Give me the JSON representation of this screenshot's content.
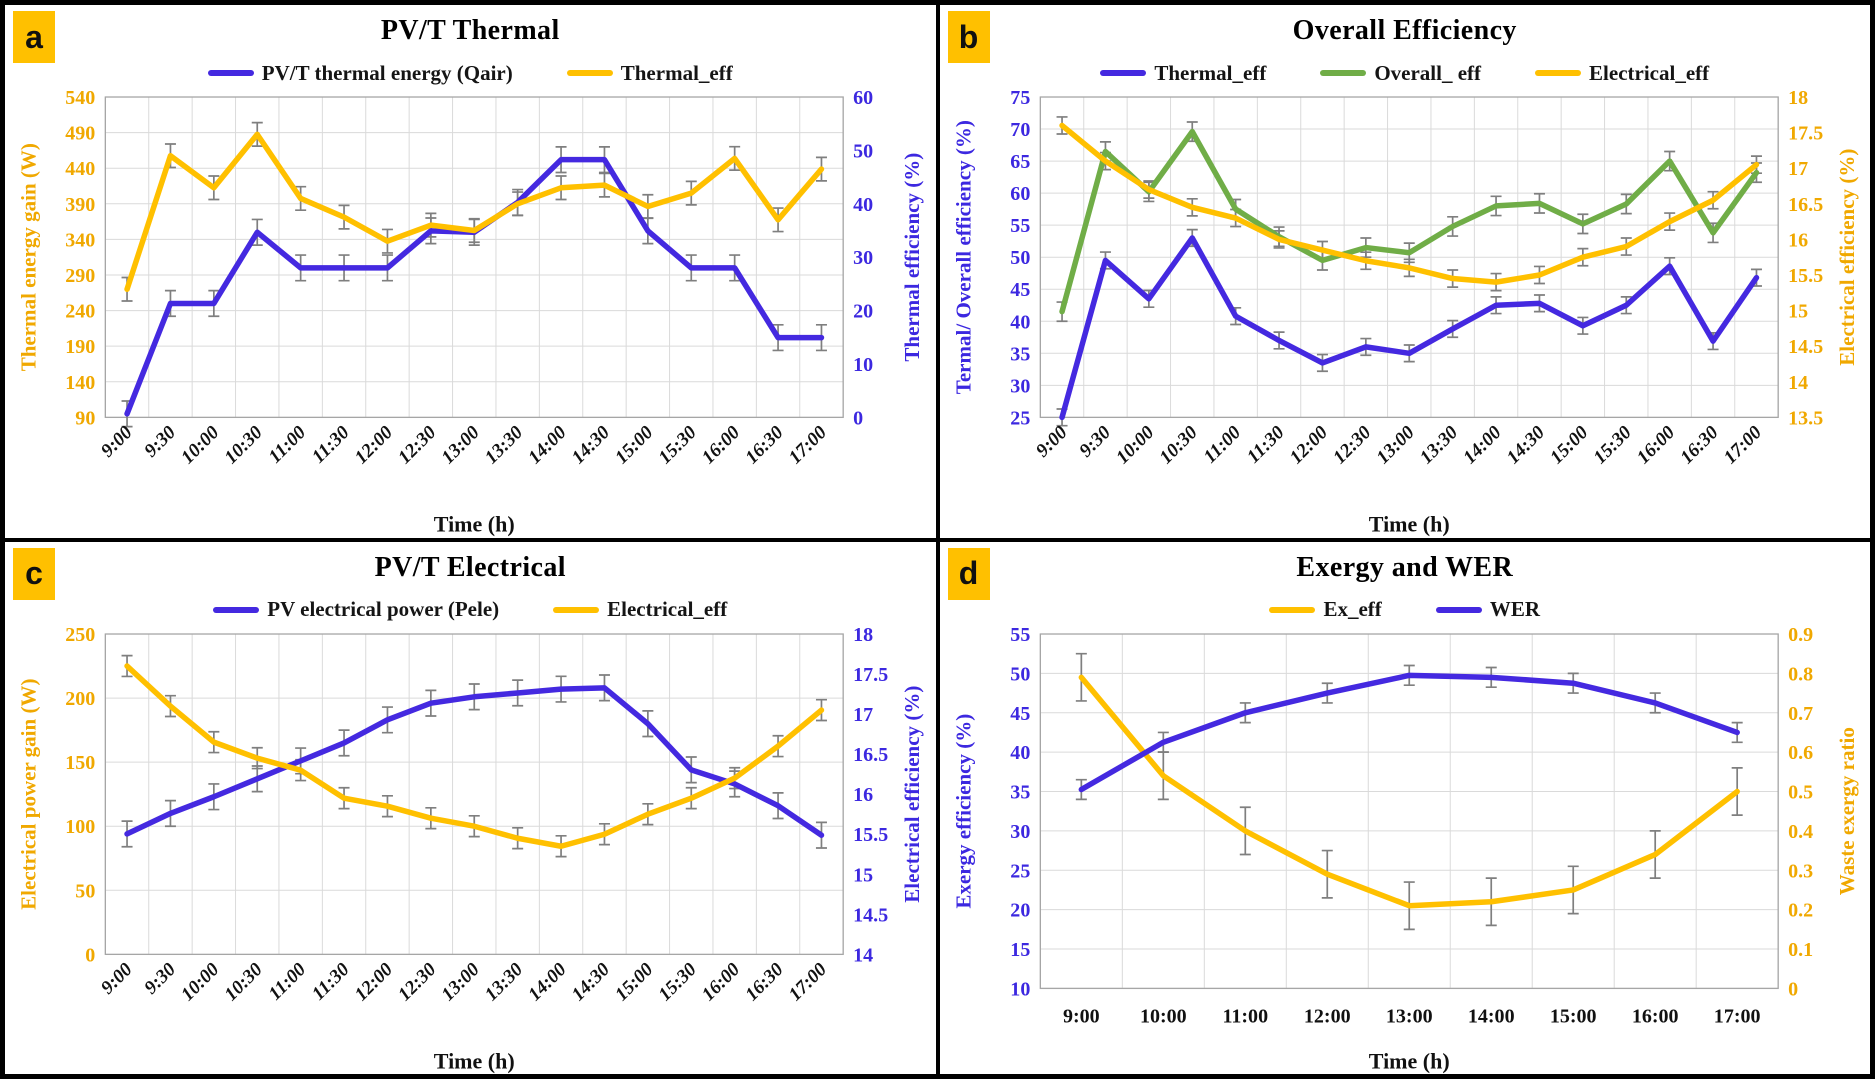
{
  "figure": {
    "background": "#FFFFFF",
    "border_color": "#000000",
    "badge_color": "#FFC000"
  },
  "chart_data": [
    {
      "panel_letter": "a",
      "type": "line",
      "title": "PV/T Thermal",
      "x_label": "Time (h)",
      "x_rotated": true,
      "grid": true,
      "legend_position": "top",
      "error_bar_color": "#7F7F7F",
      "categories": [
        "9:00",
        "9:30",
        "10:00",
        "10:30",
        "11:00",
        "11:30",
        "12:00",
        "12:30",
        "13:00",
        "13:30",
        "14:00",
        "14:30",
        "15:00",
        "15:30",
        "16:00",
        "16:30",
        "17:00"
      ],
      "left_axis": {
        "label": "Thermal energy gain (W)",
        "color": "#F0A800",
        "min": 90,
        "max": 540,
        "step": 50
      },
      "right_axis": {
        "label": "Thermal efficiency (%)",
        "color": "#3C28E0",
        "min": 0,
        "max": 60,
        "step": 10
      },
      "series": [
        {
          "name": "PV/T thermal energy (Qair)",
          "color": "#4429E0",
          "axis": "left",
          "err": 18,
          "values": [
            95,
            250,
            250,
            350,
            300,
            300,
            300,
            352,
            350,
            392,
            452,
            452,
            352,
            300,
            300,
            202,
            202
          ]
        },
        {
          "name": "Thermal_eff",
          "color": "#FFC000",
          "axis": "right",
          "err": 2.2,
          "values": [
            24,
            49,
            43,
            53,
            41,
            37.5,
            33,
            36,
            35,
            40,
            43,
            43.5,
            39.5,
            42,
            48.5,
            37,
            46.5
          ]
        }
      ]
    },
    {
      "panel_letter": "b",
      "type": "line",
      "title": "Overall Efficiency",
      "x_label": "Time (h)",
      "x_rotated": true,
      "grid": true,
      "legend_position": "top",
      "error_bar_color": "#7F7F7F",
      "categories": [
        "9:00",
        "9:30",
        "10:00",
        "10:30",
        "11:00",
        "11:30",
        "12:00",
        "12:30",
        "13:00",
        "13:30",
        "14:00",
        "14:30",
        "15:00",
        "15:30",
        "16:00",
        "16:30",
        "17:00"
      ],
      "left_axis": {
        "label": "Termal/ Overall efficiency (%)",
        "color": "#3C28E0",
        "min": 25,
        "max": 75,
        "step": 5
      },
      "right_axis": {
        "label": "Electrical efficiency (%)",
        "color": "#F0A800",
        "min": 13.5,
        "max": 18,
        "step": 0.5
      },
      "series": [
        {
          "name": "Thermal_eff",
          "color": "#4429E0",
          "axis": "left",
          "err": 1.3,
          "values": [
            25,
            49.5,
            43.5,
            53,
            40.8,
            37,
            33.5,
            36,
            35,
            38.8,
            42.5,
            42.8,
            39.3,
            42.5,
            48.6,
            36.9,
            46.8
          ]
        },
        {
          "name": "Overall_ eff",
          "color": "#70AD47",
          "axis": "left",
          "err": 1.5,
          "values": [
            41.5,
            66.5,
            60.2,
            69.6,
            57.5,
            53.2,
            49.5,
            51.5,
            50.7,
            54.8,
            58,
            58.4,
            55.2,
            58.3,
            65,
            53.8,
            63.2
          ]
        },
        {
          "name": "Electrical_eff",
          "color": "#FFC000",
          "axis": "right",
          "err": 0.12,
          "values": [
            17.6,
            17.1,
            16.7,
            16.45,
            16.3,
            16.0,
            15.85,
            15.7,
            15.6,
            15.45,
            15.4,
            15.5,
            15.75,
            15.9,
            16.25,
            16.55,
            17.05
          ]
        }
      ]
    },
    {
      "panel_letter": "c",
      "type": "line",
      "title": "PV/T Electrical",
      "x_label": "Time (h)",
      "x_rotated": true,
      "grid": true,
      "legend_position": "top",
      "error_bar_color": "#7F7F7F",
      "categories": [
        "9:00",
        "9:30",
        "10:00",
        "10:30",
        "11:00",
        "11:30",
        "12:00",
        "12:30",
        "13:00",
        "13:30",
        "14:00",
        "14:30",
        "15:00",
        "15:30",
        "16:00",
        "16:30",
        "17:00"
      ],
      "left_axis": {
        "label": "Electrical power gain (W)",
        "color": "#F0A800",
        "min": 0,
        "max": 250,
        "step": 50
      },
      "right_axis": {
        "label": "Electrical efficiency (%)",
        "color": "#3C28E0",
        "min": 14,
        "max": 18,
        "step": 0.5
      },
      "series": [
        {
          "name": "PV electrical power (Pele)",
          "color": "#4429E0",
          "axis": "left",
          "err": 10,
          "values": [
            94,
            110,
            123,
            137,
            151,
            165,
            183,
            196,
            201,
            204,
            207,
            208,
            180,
            144,
            133,
            116,
            93
          ]
        },
        {
          "name": "Electrical_eff",
          "color": "#FFC000",
          "axis": "right",
          "err": 0.13,
          "values": [
            17.6,
            17.1,
            16.65,
            16.45,
            16.3,
            15.95,
            15.85,
            15.7,
            15.6,
            15.45,
            15.35,
            15.5,
            15.75,
            15.95,
            16.2,
            16.6,
            17.05
          ]
        }
      ]
    },
    {
      "panel_letter": "d",
      "type": "line",
      "title": "Exergy and WER",
      "x_label": "Time (h)",
      "x_rotated": false,
      "grid": true,
      "legend_position": "top",
      "error_bar_color": "#7F7F7F",
      "categories": [
        "9:00",
        "10:00",
        "11:00",
        "12:00",
        "13:00",
        "14:00",
        "15:00",
        "16:00",
        "17:00"
      ],
      "left_axis": {
        "label": "Exergy  efficiency (%)",
        "color": "#3C28E0",
        "min": 10,
        "max": 55,
        "step": 5
      },
      "right_axis": {
        "label": "Waste exergy ratio",
        "color": "#F0A800",
        "min": 0,
        "max": 0.9,
        "step": 0.1
      },
      "series": [
        {
          "name": "Ex_eff",
          "color": "#FFC000",
          "axis": "left",
          "err": 3,
          "values": [
            49.5,
            37,
            30,
            24.5,
            20.5,
            21,
            22.5,
            27,
            35
          ]
        },
        {
          "name": "WER",
          "color": "#4429E0",
          "axis": "right",
          "err": 0.025,
          "values": [
            0.505,
            0.625,
            0.7,
            0.75,
            0.795,
            0.79,
            0.775,
            0.725,
            0.65
          ]
        }
      ]
    }
  ]
}
